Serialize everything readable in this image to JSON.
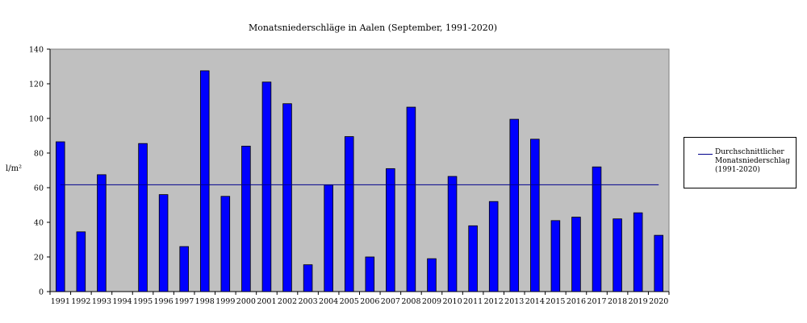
{
  "chart_data": {
    "type": "bar",
    "title": "Monatsniederschläge in Aalen (September, 1991-2020)",
    "ylabel": "l/m²",
    "xlabel": "",
    "ylim": [
      0,
      140
    ],
    "yticks": [
      0,
      20,
      40,
      60,
      80,
      100,
      120,
      140
    ],
    "categories": [
      "1991",
      "1992",
      "1993",
      "1994",
      "1995",
      "1996",
      "1997",
      "1998",
      "1999",
      "2000",
      "2001",
      "2002",
      "2003",
      "2004",
      "2005",
      "2006",
      "2007",
      "2008",
      "2009",
      "2010",
      "2011",
      "2012",
      "2013",
      "2014",
      "2015",
      "2016",
      "2017",
      "2018",
      "2019",
      "2020"
    ],
    "series": [
      {
        "values": [
          86.5,
          34.5,
          67.5,
          null,
          85.5,
          56,
          26,
          127.5,
          55,
          84,
          121,
          108.5,
          15.5,
          61.5,
          89.5,
          20,
          71,
          106.5,
          19,
          66.5,
          38,
          52,
          99.5,
          88,
          41,
          43,
          72,
          42,
          45.5,
          32.5
        ],
        "color": "#0000ff"
      },
      {
        "name": "Durchschnittlicher Monatsniederschlag (1991-2020)",
        "type": "line",
        "value": 61.7,
        "color": "#00008b"
      }
    ],
    "legend": {
      "placement": "right",
      "label": "Durchschnittlicher Monatsniederschlag (1991-2020)"
    },
    "plot_background": "#c0c0c0",
    "grid": false
  }
}
